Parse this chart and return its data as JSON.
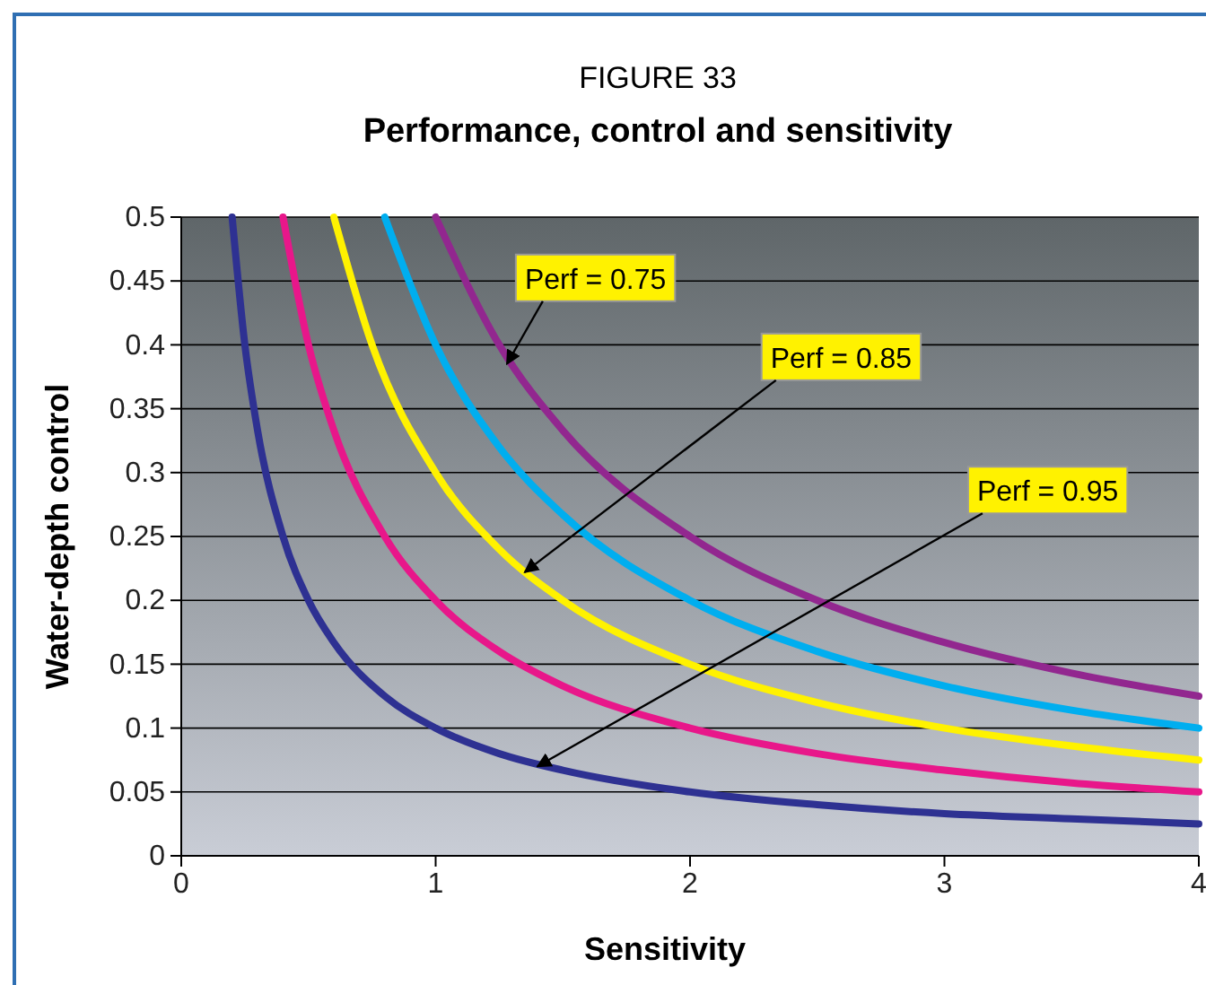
{
  "chart_data": {
    "type": "line",
    "title": "FIGURE 33",
    "subtitle": "Performance, control and sensitivity",
    "xlabel": "Sensitivity",
    "ylabel": "Water-depth control",
    "xlim": [
      0,
      4
    ],
    "xticks": [
      0,
      1,
      2,
      3,
      4
    ],
    "ylim": [
      0,
      0.5
    ],
    "yticks": [
      0,
      0.05,
      0.1,
      0.15,
      0.2,
      0.25,
      0.3,
      0.35,
      0.4,
      0.45,
      0.5
    ],
    "grid": "y",
    "marker": "none",
    "line_style": "solid",
    "series": [
      {
        "color": "#2e3192",
        "x": [
          0.2,
          0.25,
          0.3,
          0.4,
          0.5,
          0.6,
          0.8,
          1,
          1.25,
          1.5,
          2,
          2.5,
          3,
          3.5,
          4
        ],
        "values": [
          0.5,
          0.4,
          0.333,
          0.25,
          0.2,
          0.167,
          0.125,
          0.1,
          0.08,
          0.067,
          0.05,
          0.04,
          0.033,
          0.029,
          0.025
        ]
      },
      {
        "color": "#e8178a",
        "x": [
          0.4,
          0.5,
          0.6,
          0.8,
          1,
          1.25,
          1.5,
          2,
          2.5,
          3,
          3.5,
          4
        ],
        "values": [
          0.5,
          0.4,
          0.333,
          0.25,
          0.2,
          0.16,
          0.133,
          0.1,
          0.08,
          0.067,
          0.057,
          0.05
        ]
      },
      {
        "color": "#fff200",
        "x": [
          0.6,
          0.75,
          1,
          1.25,
          1.5,
          2,
          2.5,
          3,
          3.5,
          4
        ],
        "values": [
          0.5,
          0.4,
          0.3,
          0.24,
          0.2,
          0.15,
          0.12,
          0.1,
          0.086,
          0.075
        ]
      },
      {
        "color": "#00aeef",
        "x": [
          0.8,
          1,
          1.25,
          1.5,
          2,
          2.5,
          3,
          3.5,
          4
        ],
        "values": [
          0.5,
          0.4,
          0.32,
          0.267,
          0.2,
          0.16,
          0.133,
          0.114,
          0.1
        ]
      },
      {
        "color": "#92278f",
        "x": [
          1,
          1.25,
          1.5,
          2,
          2.5,
          3,
          3.5,
          4
        ],
        "values": [
          0.5,
          0.4,
          0.333,
          0.25,
          0.2,
          0.167,
          0.143,
          0.125
        ]
      }
    ],
    "annotations": [
      {
        "text": "Perf = 0.75",
        "x": 1.28,
        "y": 0.385
      },
      {
        "text": "Perf = 0.85",
        "x": 1.35,
        "y": 0.222
      },
      {
        "text": "Perf = 0.95",
        "x": 1.4,
        "y": 0.07
      }
    ]
  }
}
